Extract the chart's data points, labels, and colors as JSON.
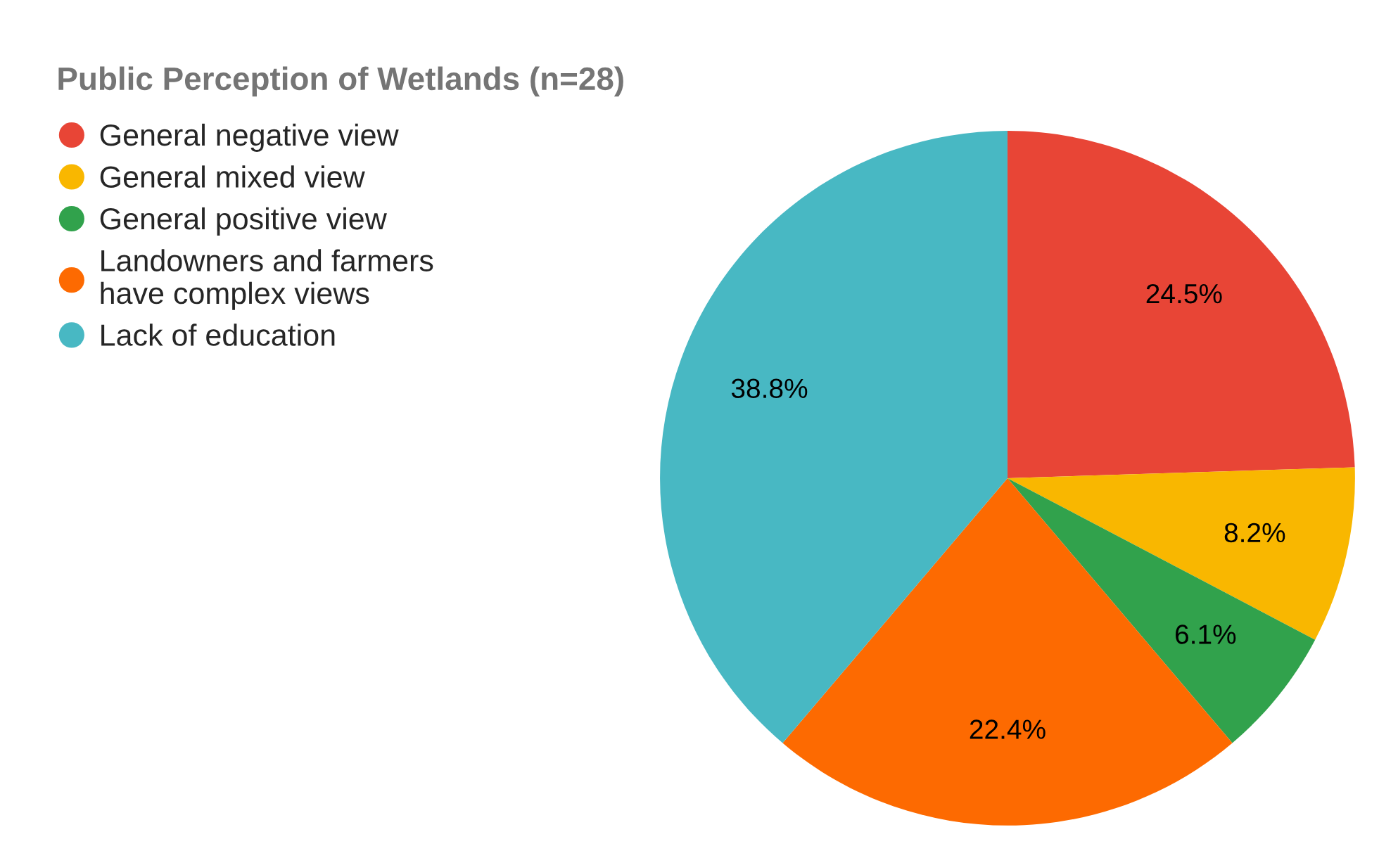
{
  "chart_data": {
    "type": "pie",
    "title": "Public Perception of Wetlands (n=28)",
    "categories": [
      "General negative view",
      "General mixed view",
      "General positive view",
      "Landowners and farmers\nhave complex views",
      "Lack of education"
    ],
    "values": [
      24.5,
      8.2,
      6.1,
      22.4,
      38.8
    ],
    "colors": [
      "#e84536",
      "#f9b700",
      "#31a24c",
      "#fd6a01",
      "#48b8c3"
    ],
    "value_labels": [
      "24.5%",
      "8.2%",
      "6.1%",
      "22.4%",
      "38.8%"
    ],
    "legend": "top left"
  }
}
